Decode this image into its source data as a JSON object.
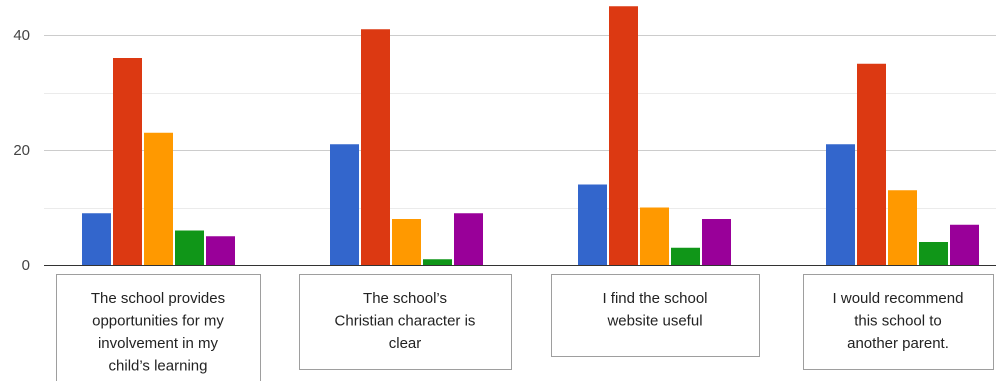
{
  "chart_data": {
    "type": "bar",
    "categories": [
      "The school provides opportunities for my involvement in my child’s learning",
      "The school’s Christian character is clear",
      "I find the school website useful",
      "I would recommend this school to another parent."
    ],
    "category_lines": [
      [
        "The school provides",
        "opportunities for my",
        "involvement in my",
        "child’s learning"
      ],
      [
        "The school’s",
        "Christian character is",
        "clear"
      ],
      [
        "I find the school",
        "website useful"
      ],
      [
        "I would recommend",
        "this school to",
        "another parent."
      ]
    ],
    "series": [
      {
        "color": "#3366cc",
        "values": [
          9,
          21,
          14,
          21
        ]
      },
      {
        "color": "#dc3912",
        "values": [
          36,
          41,
          45,
          35
        ]
      },
      {
        "color": "#ff9900",
        "values": [
          23,
          8,
          10,
          13
        ]
      },
      {
        "color": "#109618",
        "values": [
          6,
          1,
          3,
          4
        ]
      },
      {
        "color": "#990099",
        "values": [
          5,
          9,
          8,
          7
        ]
      }
    ],
    "ylim": [
      0,
      46
    ],
    "yticks": [
      0,
      20,
      40
    ],
    "ytick_labels": [
      "0",
      "20",
      "40"
    ],
    "minor_gridlines": [
      10,
      30
    ],
    "grid": true,
    "title": "",
    "xlabel": "",
    "ylabel": ""
  }
}
